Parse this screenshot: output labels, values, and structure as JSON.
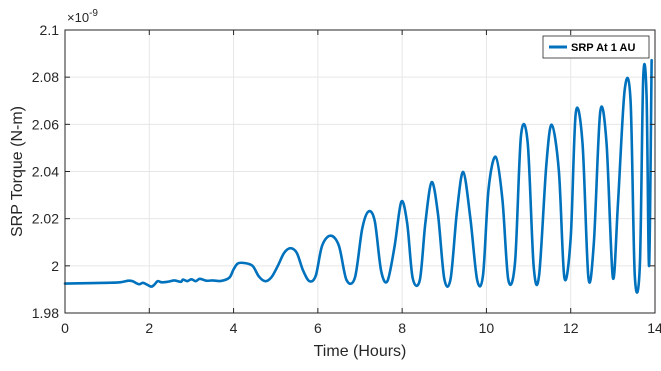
{
  "chart_data": {
    "type": "line",
    "title": "",
    "xlabel": "Time (Hours)",
    "ylabel": "SRP Torque (N-m)",
    "y_exponent_label": "×10",
    "y_exponent_power": "-9",
    "xlim": [
      0,
      14
    ],
    "ylim": [
      1.98,
      2.1
    ],
    "x_ticks": [
      0,
      2,
      4,
      6,
      8,
      10,
      12,
      14
    ],
    "x_tick_labels": [
      "0",
      "2",
      "4",
      "6",
      "8",
      "10",
      "12",
      "14"
    ],
    "y_ticks": [
      1.98,
      2.0,
      2.02,
      2.04,
      2.06,
      2.08,
      2.1
    ],
    "y_tick_labels": [
      "1.98",
      "2",
      "2.02",
      "2.04",
      "2.06",
      "2.08",
      "2.1"
    ],
    "grid": true,
    "legend_position": "top-right",
    "series": [
      {
        "name": "SRP At 1 AU",
        "color": "#0072BD",
        "x": [
          0,
          1.0,
          1.3,
          1.5,
          1.6,
          1.75,
          1.85,
          1.95,
          2.05,
          2.12,
          2.2,
          2.3,
          2.45,
          2.6,
          2.75,
          2.8,
          2.9,
          3.0,
          3.1,
          3.2,
          3.35,
          3.5,
          3.7,
          3.9,
          4.0,
          4.1,
          4.25,
          4.45,
          4.6,
          4.75,
          4.9,
          5.05,
          5.2,
          5.35,
          5.5,
          5.65,
          5.8,
          5.95,
          6.1,
          6.3,
          6.5,
          6.68,
          6.88,
          7.05,
          7.2,
          7.35,
          7.5,
          7.65,
          7.82,
          7.98,
          8.12,
          8.25,
          8.42,
          8.55,
          8.7,
          8.85,
          9.0,
          9.15,
          9.3,
          9.45,
          9.62,
          9.78,
          9.92,
          10.05,
          10.22,
          10.38,
          10.52,
          10.68,
          10.82,
          10.98,
          11.12,
          11.25,
          11.42,
          11.55,
          11.72,
          11.85,
          12.0,
          12.12,
          12.28,
          12.42,
          12.55,
          12.7,
          12.85,
          13.0,
          13.12,
          13.28,
          13.42,
          13.52,
          13.64,
          13.72,
          13.8,
          13.86,
          13.92
        ],
        "y": [
          1.9925,
          1.9928,
          1.993,
          1.9937,
          1.9935,
          1.9922,
          1.9928,
          1.992,
          1.9912,
          1.992,
          1.9935,
          1.993,
          1.9933,
          1.9938,
          1.9932,
          1.9942,
          1.9935,
          1.9943,
          1.9935,
          1.9945,
          1.9937,
          1.9938,
          1.9936,
          1.995,
          1.9985,
          2.001,
          2.0012,
          2.0,
          1.9955,
          1.9935,
          1.9952,
          2.0,
          2.0055,
          2.0075,
          2.0055,
          1.998,
          1.9935,
          1.9958,
          2.0085,
          2.0128,
          2.0085,
          1.994,
          1.995,
          2.0155,
          2.023,
          2.019,
          1.998,
          1.9935,
          2.0082,
          2.0272,
          2.018,
          1.9948,
          1.994,
          2.018,
          2.0355,
          2.022,
          1.9945,
          1.9945,
          2.023,
          2.0398,
          2.02,
          1.994,
          1.9962,
          2.0325,
          2.0462,
          2.028,
          1.994,
          2.0018,
          2.0552,
          2.052,
          2.0,
          1.996,
          2.0425,
          2.0598,
          2.04,
          1.995,
          2.012,
          2.0648,
          2.052,
          1.995,
          2.01,
          2.0652,
          2.052,
          1.995,
          2.026,
          2.0745,
          2.07,
          1.996,
          2.0,
          2.0795,
          2.072,
          2.0,
          2.0872
        ]
      }
    ]
  }
}
